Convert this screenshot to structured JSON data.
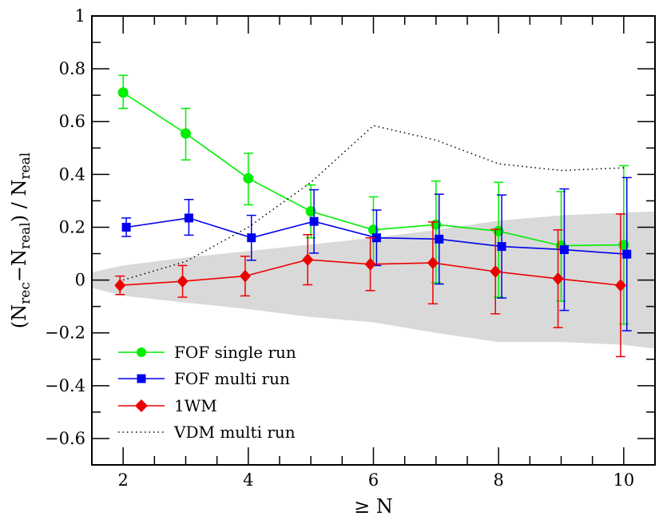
{
  "chart_data": {
    "type": "line",
    "xlim": [
      1.5,
      10.5
    ],
    "ylim": [
      -0.7,
      1.0
    ],
    "xticks": [
      2,
      4,
      6,
      8,
      10
    ],
    "xtick_labels": [
      "2",
      "4",
      "6",
      "8",
      "10"
    ],
    "xminor": [
      1.5,
      2.5,
      3,
      3.5,
      4.5,
      5,
      5.5,
      6.5,
      7,
      7.5,
      8.5,
      9,
      9.5,
      10.5
    ],
    "yticks": [
      -0.6,
      -0.4,
      -0.2,
      0,
      0.2,
      0.4,
      0.6,
      0.8,
      1.0
    ],
    "ytick_labels": [
      "−0.6",
      "−0.4",
      "−0.2",
      "0",
      "0.2",
      "0.4",
      "0.6",
      "0.8",
      "1"
    ],
    "yminor": [
      -0.7,
      -0.5,
      -0.3,
      -0.1,
      0.1,
      0.3,
      0.5,
      0.7,
      0.9
    ],
    "xlabel": "≥ N",
    "ylabel_parts": {
      "open": "(N",
      "sub1": "rec",
      "mid": "−N",
      "sub2": "real",
      "close": ") / N",
      "sub3": "real"
    },
    "band": {
      "name": "shaded region",
      "color": "#d9d9d9",
      "x": [
        1.5,
        2,
        3,
        4,
        5,
        6,
        7,
        8,
        9,
        10,
        10.5
      ],
      "upper": [
        0.03,
        0.055,
        0.085,
        0.11,
        0.135,
        0.16,
        0.19,
        0.225,
        0.245,
        0.255,
        0.26
      ],
      "lower": [
        -0.03,
        -0.06,
        -0.085,
        -0.11,
        -0.14,
        -0.16,
        -0.2,
        -0.235,
        -0.235,
        -0.245,
        -0.26
      ]
    },
    "series": [
      {
        "name": "FOF single run",
        "color": "#00ee00",
        "marker": "circle",
        "x": [
          2,
          3,
          4,
          5,
          6,
          7,
          8,
          9,
          10
        ],
        "values": [
          0.71,
          0.555,
          0.385,
          0.26,
          0.19,
          0.21,
          0.185,
          0.13,
          0.133
        ],
        "err_low": [
          0.06,
          0.1,
          0.1,
          0.1,
          0.13,
          0.22,
          0.25,
          0.21,
          0.3
        ],
        "err_high": [
          0.065,
          0.095,
          0.095,
          0.1,
          0.125,
          0.165,
          0.185,
          0.205,
          0.3
        ]
      },
      {
        "name": "FOF multi run",
        "color": "#0000ee",
        "marker": "square",
        "x": [
          2.05,
          3.05,
          4.05,
          5.05,
          6.05,
          7.05,
          8.05,
          9.05,
          10.05
        ],
        "values": [
          0.2,
          0.235,
          0.16,
          0.222,
          0.16,
          0.155,
          0.127,
          0.115,
          0.098
        ],
        "err_low": [
          0.035,
          0.065,
          0.085,
          0.12,
          0.105,
          0.17,
          0.195,
          0.23,
          0.29
        ],
        "err_high": [
          0.035,
          0.07,
          0.085,
          0.12,
          0.105,
          0.17,
          0.195,
          0.23,
          0.29
        ]
      },
      {
        "name": "1WM",
        "color": "#ee0000",
        "marker": "diamond",
        "x": [
          1.95,
          2.95,
          3.95,
          4.95,
          5.95,
          6.95,
          7.95,
          8.95,
          9.95
        ],
        "values": [
          -0.02,
          -0.005,
          0.015,
          0.077,
          0.06,
          0.065,
          0.032,
          0.005,
          -0.02
        ],
        "err_low": [
          0.035,
          0.06,
          0.075,
          0.095,
          0.1,
          0.155,
          0.16,
          0.185,
          0.27
        ],
        "err_high": [
          0.035,
          0.06,
          0.075,
          0.095,
          0.1,
          0.155,
          0.16,
          0.185,
          0.27
        ]
      },
      {
        "name": "VDM multi run",
        "color": "#000000",
        "marker": "none",
        "dash": "dotted",
        "x": [
          2,
          3,
          4,
          5,
          6,
          7,
          8,
          9,
          10
        ],
        "values": [
          0.0,
          0.07,
          0.2,
          0.37,
          0.585,
          0.53,
          0.44,
          0.415,
          0.425
        ]
      }
    ],
    "legend": {
      "position": "lower-left",
      "entries": [
        "FOF single run",
        "FOF multi run",
        "1WM",
        "VDM multi run"
      ]
    }
  }
}
